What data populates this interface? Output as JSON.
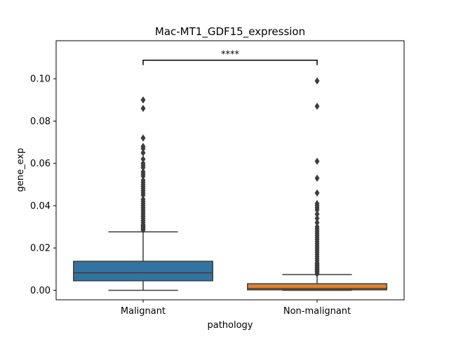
{
  "chart_data": {
    "type": "box",
    "title": "Mac-MT1_GDF15_expression",
    "xlabel": "pathology",
    "ylabel": "gene_exp",
    "ylim": [
      -0.0045,
      0.118
    ],
    "yticks": [
      0.0,
      0.02,
      0.04,
      0.06,
      0.08,
      0.1
    ],
    "ytick_labels": [
      "0.00",
      "0.02",
      "0.04",
      "0.06",
      "0.08",
      "0.10"
    ],
    "categories": [
      "Malignant",
      "Non-malignant"
    ],
    "grid": false,
    "legend": "none",
    "boxes": [
      {
        "category": "Malignant",
        "color": "#3274a1",
        "whisker_low": 0.0,
        "q1": 0.0045,
        "median": 0.0083,
        "q3": 0.0137,
        "whisker_high": 0.0276,
        "outliers": [
          0.0285,
          0.029,
          0.0295,
          0.03,
          0.0305,
          0.031,
          0.032,
          0.033,
          0.034,
          0.035,
          0.036,
          0.037,
          0.038,
          0.039,
          0.04,
          0.041,
          0.042,
          0.043,
          0.045,
          0.046,
          0.047,
          0.048,
          0.049,
          0.05,
          0.051,
          0.052,
          0.054,
          0.055,
          0.056,
          0.058,
          0.059,
          0.06,
          0.062,
          0.065,
          0.067,
          0.068,
          0.072,
          0.086,
          0.09
        ]
      },
      {
        "category": "Non-malignant",
        "color": "#e1812c",
        "whisker_low": 0.0,
        "q1": 0.0002,
        "median": 0.0008,
        "q3": 0.0031,
        "whisker_high": 0.0074,
        "outliers": [
          0.0078,
          0.0085,
          0.009,
          0.0095,
          0.01,
          0.0105,
          0.011,
          0.0115,
          0.012,
          0.0125,
          0.013,
          0.014,
          0.015,
          0.016,
          0.017,
          0.018,
          0.019,
          0.02,
          0.021,
          0.022,
          0.023,
          0.024,
          0.025,
          0.026,
          0.027,
          0.028,
          0.029,
          0.03,
          0.032,
          0.034,
          0.036,
          0.038,
          0.039,
          0.04,
          0.041,
          0.046,
          0.053,
          0.061,
          0.087,
          0.099
        ]
      }
    ],
    "significance": {
      "from": "Malignant",
      "to": "Non-malignant",
      "y": 0.1088,
      "label": "****"
    }
  }
}
